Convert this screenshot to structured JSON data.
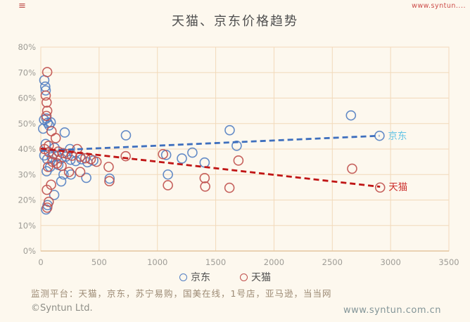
{
  "page": {
    "top_left_icon": "≡",
    "top_right_watermark": "www.syntun....",
    "title": "天猫、京东价格趋势",
    "footer_note": "监测平台：天猫，京东，苏宁易购，国美在线，1号店，亚马逊，当当网",
    "copyright": "©Syntun Ltd.",
    "website": "www.syntun.com.cn"
  },
  "legend": [
    {
      "label": "京东",
      "color": "#527ec2"
    },
    {
      "label": "天猫",
      "color": "#c0504d"
    }
  ],
  "colors": {
    "background": "#fdf8ee",
    "grid": "#f2d9ba",
    "axis": "#e4c69e",
    "tick_text": "#9e9c96",
    "jd_point": "#527ec2",
    "tmall_point": "#c0504d",
    "jd_trend": "#3e6fbe",
    "tmall_trend": "#c01515",
    "jd_trend_label": "#63c4e6",
    "tmall_trend_label": "#cc2f2c"
  },
  "chart_data": {
    "type": "scatter",
    "title": "天猫、京东价格趋势",
    "xlim": [
      0,
      3500
    ],
    "ylim": [
      0,
      80
    ],
    "x_ticks": [
      0,
      500,
      1000,
      1500,
      2000,
      2500,
      3000,
      3500
    ],
    "y_ticks": [
      0,
      10,
      20,
      30,
      40,
      50,
      60,
      70,
      80
    ],
    "y_tick_suffix": "%",
    "grid": true,
    "legend_position": "bottom",
    "series": [
      {
        "name": "京东",
        "color": "#527ec2",
        "points": [
          [
            30,
            67
          ],
          [
            38,
            64.5
          ],
          [
            42,
            63
          ],
          [
            28,
            51.5
          ],
          [
            48,
            52
          ],
          [
            58,
            50.3
          ],
          [
            20,
            48
          ],
          [
            85,
            50.5
          ],
          [
            72,
            49.3
          ],
          [
            205,
            46.5
          ],
          [
            42,
            42
          ],
          [
            118,
            40.5
          ],
          [
            95,
            36.8
          ],
          [
            250,
            40
          ],
          [
            30,
            37.5
          ],
          [
            55,
            36
          ],
          [
            140,
            37.3
          ],
          [
            175,
            36.3
          ],
          [
            215,
            37
          ],
          [
            255,
            35.8
          ],
          [
            300,
            35.3
          ],
          [
            350,
            36
          ],
          [
            400,
            34.8
          ],
          [
            450,
            35.5
          ],
          [
            150,
            33.8
          ],
          [
            80,
            33
          ],
          [
            50,
            31.3
          ],
          [
            195,
            30
          ],
          [
            258,
            30
          ],
          [
            390,
            28.7
          ],
          [
            175,
            27.3
          ],
          [
            115,
            22
          ],
          [
            58,
            18
          ],
          [
            45,
            16.3
          ],
          [
            590,
            28.4
          ],
          [
            730,
            45.4
          ],
          [
            1075,
            37.7
          ],
          [
            1090,
            30
          ],
          [
            1210,
            36.3
          ],
          [
            1300,
            38.6
          ],
          [
            1405,
            34.7
          ],
          [
            1620,
            47.4
          ],
          [
            1680,
            41.3
          ],
          [
            2660,
            53.2
          ],
          [
            2905,
            45.2
          ]
        ]
      },
      {
        "name": "天猫",
        "color": "#c0504d",
        "points": [
          [
            55,
            70.2
          ],
          [
            42,
            61
          ],
          [
            50,
            58.3
          ],
          [
            55,
            55
          ],
          [
            48,
            53
          ],
          [
            92,
            47
          ],
          [
            128,
            44.3
          ],
          [
            68,
            41.3
          ],
          [
            32,
            40
          ],
          [
            70,
            38.8
          ],
          [
            108,
            38
          ],
          [
            150,
            39
          ],
          [
            188,
            38.4
          ],
          [
            228,
            38
          ],
          [
            268,
            37.4
          ],
          [
            312,
            40
          ],
          [
            338,
            37
          ],
          [
            382,
            36.4
          ],
          [
            428,
            36
          ],
          [
            478,
            35
          ],
          [
            100,
            35
          ],
          [
            138,
            34.4
          ],
          [
            178,
            33.4
          ],
          [
            62,
            33
          ],
          [
            338,
            31
          ],
          [
            242,
            31
          ],
          [
            88,
            26
          ],
          [
            52,
            24
          ],
          [
            68,
            19.3
          ],
          [
            55,
            17
          ],
          [
            582,
            33
          ],
          [
            588,
            27.4
          ],
          [
            728,
            37.2
          ],
          [
            1048,
            38
          ],
          [
            1090,
            25.8
          ],
          [
            1405,
            28.6
          ],
          [
            1410,
            25.3
          ],
          [
            1695,
            35.5
          ],
          [
            1618,
            24.8
          ],
          [
            2670,
            32.3
          ],
          [
            2910,
            24.9
          ]
        ]
      }
    ],
    "trendlines": [
      {
        "name": "京东",
        "start": [
          0,
          39.3
        ],
        "end": [
          2905,
          45.2
        ],
        "color": "#3e6fbe",
        "label": "京东",
        "label_color": "#63c4e6"
      },
      {
        "name": "天猫",
        "start": [
          0,
          40.2
        ],
        "end": [
          2910,
          25.2
        ],
        "color": "#c01515",
        "label": "天猫",
        "label_color": "#cc2f2c"
      }
    ]
  }
}
